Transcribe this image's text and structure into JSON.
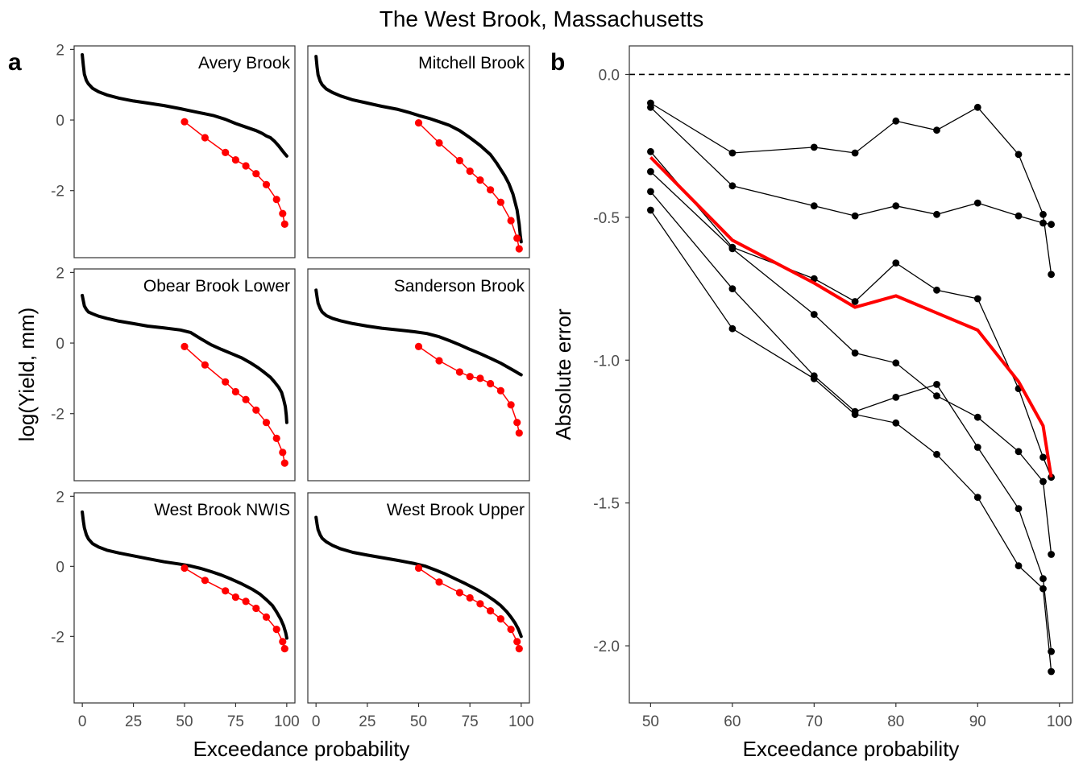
{
  "title": "The West Brook, Massachusetts",
  "panel_labels": [
    "a",
    "b"
  ],
  "colors": {
    "observed": "#000000",
    "predicted": "#ff0000",
    "mean": "#ff0000",
    "reference": "#000000"
  },
  "chart_data": [
    {
      "type": "line",
      "panel": "a",
      "xlabel": "Exceedance probability",
      "ylabel": "log(Yield, mm)",
      "xlim": [
        -4,
        104
      ],
      "ylim": [
        -3.9,
        2.1
      ],
      "xticks": [
        0,
        25,
        50,
        75,
        100
      ],
      "yticks": [
        2,
        0,
        -2
      ],
      "facets": [
        {
          "name": "Avery Brook",
          "observed": [
            [
              0,
              1.85
            ],
            [
              0.5,
              1.55
            ],
            [
              1,
              1.3
            ],
            [
              2,
              1.12
            ],
            [
              3,
              1.02
            ],
            [
              5,
              0.9
            ],
            [
              8,
              0.8
            ],
            [
              12,
              0.71
            ],
            [
              18,
              0.62
            ],
            [
              25,
              0.54
            ],
            [
              32,
              0.48
            ],
            [
              40,
              0.41
            ],
            [
              48,
              0.32
            ],
            [
              52,
              0.27
            ],
            [
              58,
              0.2
            ],
            [
              64,
              0.13
            ],
            [
              70,
              0.02
            ],
            [
              75,
              -0.1
            ],
            [
              80,
              -0.2
            ],
            [
              85,
              -0.3
            ],
            [
              88,
              -0.38
            ],
            [
              90,
              -0.45
            ],
            [
              92,
              -0.5
            ],
            [
              94,
              -0.6
            ],
            [
              96,
              -0.73
            ],
            [
              98,
              -0.88
            ],
            [
              99,
              -0.95
            ],
            [
              100,
              -1.02
            ]
          ],
          "predicted": [
            [
              50,
              -0.05
            ],
            [
              60,
              -0.5
            ],
            [
              70,
              -0.92
            ],
            [
              75,
              -1.13
            ],
            [
              80,
              -1.3
            ],
            [
              85,
              -1.52
            ],
            [
              90,
              -1.83
            ],
            [
              95,
              -2.25
            ],
            [
              98,
              -2.65
            ],
            [
              99,
              -2.95
            ]
          ]
        },
        {
          "name": "Mitchell Brook",
          "observed": [
            [
              0,
              1.8
            ],
            [
              0.5,
              1.5
            ],
            [
              1,
              1.28
            ],
            [
              2,
              1.1
            ],
            [
              3,
              1.0
            ],
            [
              5,
              0.88
            ],
            [
              8,
              0.78
            ],
            [
              12,
              0.68
            ],
            [
              18,
              0.57
            ],
            [
              25,
              0.48
            ],
            [
              32,
              0.39
            ],
            [
              40,
              0.3
            ],
            [
              45,
              0.22
            ],
            [
              50,
              0.13
            ],
            [
              55,
              0.05
            ],
            [
              60,
              -0.05
            ],
            [
              65,
              -0.15
            ],
            [
              70,
              -0.3
            ],
            [
              75,
              -0.5
            ],
            [
              80,
              -0.72
            ],
            [
              85,
              -0.98
            ],
            [
              88,
              -1.22
            ],
            [
              90,
              -1.4
            ],
            [
              92,
              -1.58
            ],
            [
              94,
              -1.8
            ],
            [
              96,
              -2.1
            ],
            [
              98,
              -2.55
            ],
            [
              99,
              -2.95
            ],
            [
              99.6,
              -3.3
            ],
            [
              100,
              -3.45
            ]
          ],
          "predicted": [
            [
              50,
              -0.08
            ],
            [
              60,
              -0.65
            ],
            [
              70,
              -1.15
            ],
            [
              75,
              -1.45
            ],
            [
              80,
              -1.7
            ],
            [
              85,
              -1.98
            ],
            [
              90,
              -2.33
            ],
            [
              95,
              -2.85
            ],
            [
              98,
              -3.35
            ],
            [
              99,
              -3.65
            ]
          ]
        },
        {
          "name": "Obear Brook Lower",
          "observed": [
            [
              0,
              1.35
            ],
            [
              0.5,
              1.2
            ],
            [
              1,
              1.05
            ],
            [
              2,
              0.95
            ],
            [
              3,
              0.88
            ],
            [
              5,
              0.83
            ],
            [
              8,
              0.76
            ],
            [
              12,
              0.7
            ],
            [
              18,
              0.62
            ],
            [
              25,
              0.55
            ],
            [
              32,
              0.48
            ],
            [
              40,
              0.43
            ],
            [
              48,
              0.37
            ],
            [
              53,
              0.3
            ],
            [
              58,
              0.12
            ],
            [
              63,
              -0.05
            ],
            [
              68,
              -0.18
            ],
            [
              73,
              -0.3
            ],
            [
              78,
              -0.42
            ],
            [
              82,
              -0.55
            ],
            [
              86,
              -0.7
            ],
            [
              89,
              -0.83
            ],
            [
              92,
              -0.97
            ],
            [
              94,
              -1.1
            ],
            [
              96,
              -1.25
            ],
            [
              97.5,
              -1.4
            ],
            [
              98.5,
              -1.6
            ],
            [
              99.3,
              -1.8
            ],
            [
              99.8,
              -2.05
            ],
            [
              100,
              -2.25
            ]
          ],
          "predicted": [
            [
              50,
              -0.1
            ],
            [
              60,
              -0.62
            ],
            [
              70,
              -1.1
            ],
            [
              75,
              -1.38
            ],
            [
              80,
              -1.6
            ],
            [
              85,
              -1.9
            ],
            [
              90,
              -2.25
            ],
            [
              95,
              -2.7
            ],
            [
              98,
              -3.1
            ],
            [
              99,
              -3.4
            ]
          ]
        },
        {
          "name": "Sanderson Brook",
          "observed": [
            [
              0,
              1.5
            ],
            [
              0.5,
              1.3
            ],
            [
              1,
              1.13
            ],
            [
              2,
              0.98
            ],
            [
              3,
              0.88
            ],
            [
              5,
              0.78
            ],
            [
              8,
              0.7
            ],
            [
              12,
              0.63
            ],
            [
              18,
              0.55
            ],
            [
              25,
              0.48
            ],
            [
              32,
              0.42
            ],
            [
              40,
              0.37
            ],
            [
              48,
              0.32
            ],
            [
              54,
              0.27
            ],
            [
              60,
              0.18
            ],
            [
              65,
              0.07
            ],
            [
              70,
              -0.05
            ],
            [
              75,
              -0.18
            ],
            [
              80,
              -0.3
            ],
            [
              85,
              -0.43
            ],
            [
              90,
              -0.57
            ],
            [
              94,
              -0.7
            ],
            [
              97,
              -0.8
            ],
            [
              99,
              -0.87
            ],
            [
              100,
              -0.9
            ]
          ],
          "predicted": [
            [
              50,
              -0.1
            ],
            [
              60,
              -0.5
            ],
            [
              70,
              -0.82
            ],
            [
              75,
              -0.95
            ],
            [
              80,
              -1.0
            ],
            [
              85,
              -1.15
            ],
            [
              90,
              -1.35
            ],
            [
              95,
              -1.75
            ],
            [
              98,
              -2.25
            ],
            [
              99,
              -2.55
            ]
          ]
        },
        {
          "name": "West Brook NWIS",
          "observed": [
            [
              0,
              1.55
            ],
            [
              0.5,
              1.3
            ],
            [
              1,
              1.1
            ],
            [
              2,
              0.9
            ],
            [
              3,
              0.78
            ],
            [
              5,
              0.65
            ],
            [
              8,
              0.55
            ],
            [
              12,
              0.46
            ],
            [
              18,
              0.38
            ],
            [
              25,
              0.3
            ],
            [
              32,
              0.22
            ],
            [
              40,
              0.13
            ],
            [
              48,
              0.06
            ],
            [
              53,
              0.01
            ],
            [
              58,
              -0.06
            ],
            [
              63,
              -0.15
            ],
            [
              68,
              -0.25
            ],
            [
              73,
              -0.37
            ],
            [
              78,
              -0.5
            ],
            [
              83,
              -0.65
            ],
            [
              87,
              -0.8
            ],
            [
              90,
              -0.95
            ],
            [
              93,
              -1.12
            ],
            [
              95,
              -1.3
            ],
            [
              97,
              -1.5
            ],
            [
              98.5,
              -1.7
            ],
            [
              99.5,
              -1.9
            ],
            [
              100,
              -2.05
            ]
          ],
          "predicted": [
            [
              50,
              -0.05
            ],
            [
              60,
              -0.4
            ],
            [
              70,
              -0.7
            ],
            [
              75,
              -0.88
            ],
            [
              80,
              -1.0
            ],
            [
              85,
              -1.2
            ],
            [
              90,
              -1.45
            ],
            [
              95,
              -1.8
            ],
            [
              98,
              -2.15
            ],
            [
              99,
              -2.35
            ]
          ]
        },
        {
          "name": "West Brook Upper",
          "observed": [
            [
              0,
              1.4
            ],
            [
              0.5,
              1.2
            ],
            [
              1,
              1.05
            ],
            [
              2,
              0.9
            ],
            [
              3,
              0.8
            ],
            [
              5,
              0.7
            ],
            [
              8,
              0.6
            ],
            [
              12,
              0.5
            ],
            [
              18,
              0.4
            ],
            [
              25,
              0.32
            ],
            [
              32,
              0.25
            ],
            [
              40,
              0.17
            ],
            [
              48,
              0.08
            ],
            [
              53,
              0.01
            ],
            [
              58,
              -0.1
            ],
            [
              63,
              -0.22
            ],
            [
              68,
              -0.36
            ],
            [
              73,
              -0.5
            ],
            [
              78,
              -0.65
            ],
            [
              83,
              -0.82
            ],
            [
              87,
              -0.98
            ],
            [
              90,
              -1.12
            ],
            [
              93,
              -1.3
            ],
            [
              95,
              -1.45
            ],
            [
              97,
              -1.62
            ],
            [
              98.5,
              -1.78
            ],
            [
              99.5,
              -1.92
            ],
            [
              100,
              -2.0
            ]
          ],
          "predicted": [
            [
              50,
              -0.05
            ],
            [
              60,
              -0.45
            ],
            [
              70,
              -0.75
            ],
            [
              75,
              -0.9
            ],
            [
              80,
              -1.07
            ],
            [
              85,
              -1.27
            ],
            [
              90,
              -1.5
            ],
            [
              95,
              -1.8
            ],
            [
              98,
              -2.15
            ],
            [
              99,
              -2.35
            ]
          ]
        }
      ]
    },
    {
      "type": "line",
      "panel": "b",
      "xlabel": "Exceedance probability",
      "ylabel": "Absolute error",
      "xlim": [
        47.4,
        101.6
      ],
      "ylim": [
        -2.2,
        0.1
      ],
      "xticks": [
        50,
        60,
        70,
        80,
        90,
        100
      ],
      "yticks": [
        0.0,
        -0.5,
        -1.0,
        -1.5,
        -2.0
      ],
      "ytick_labels": [
        "0.0",
        "-0.5",
        "-1.0",
        "-1.5",
        "-2.0"
      ],
      "reference_line": 0,
      "x": [
        50,
        60,
        70,
        75,
        80,
        85,
        90,
        95,
        98,
        99
      ],
      "series": [
        {
          "values": [
            -0.1,
            -0.275,
            -0.255,
            -0.275,
            -0.163,
            -0.195,
            -0.115,
            -0.28,
            -0.49,
            -0.7
          ]
        },
        {
          "values": [
            -0.115,
            -0.39,
            -0.46,
            -0.495,
            -0.46,
            -0.49,
            -0.45,
            -0.495,
            -0.52,
            -0.525
          ]
        },
        {
          "values": [
            -0.27,
            -0.605,
            -0.715,
            -0.795,
            -0.66,
            -0.755,
            -0.785,
            -1.1,
            -1.34,
            -1.41
          ]
        },
        {
          "values": [
            -0.34,
            -0.61,
            -0.84,
            -0.975,
            -1.01,
            -1.125,
            -1.2,
            -1.32,
            -1.425,
            -1.68
          ]
        },
        {
          "values": [
            -0.41,
            -0.75,
            -1.055,
            -1.18,
            -1.13,
            -1.085,
            -1.305,
            -1.52,
            -1.765,
            -2.02
          ]
        },
        {
          "values": [
            -0.475,
            -0.89,
            -1.065,
            -1.19,
            -1.22,
            -1.33,
            -1.48,
            -1.72,
            -1.8,
            -2.09
          ]
        }
      ],
      "mean": [
        -0.29,
        -0.58,
        -0.73,
        -0.815,
        -0.775,
        -0.835,
        -0.895,
        -1.075,
        -1.23,
        -1.41
      ]
    }
  ]
}
